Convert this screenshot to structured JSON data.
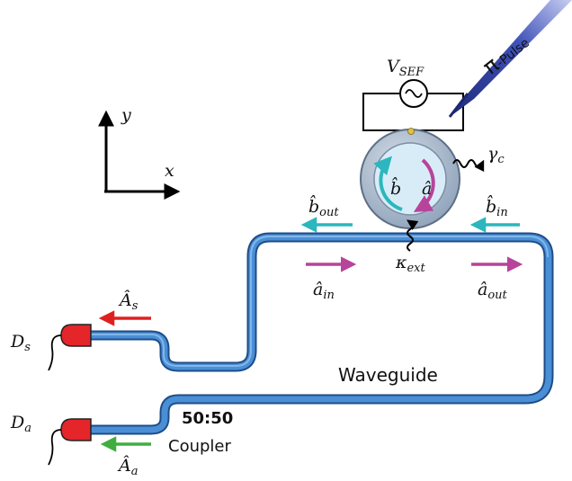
{
  "axes": {
    "y": "y",
    "x": "x"
  },
  "source": {
    "label_main": "V",
    "label_sub": "SEF",
    "symbol": "~"
  },
  "pulse": {
    "pi": "π",
    "label": "-Pulse"
  },
  "ring": {
    "mode_b": "b̂",
    "mode_a": "â",
    "loss_main": "γ",
    "loss_sub": "c"
  },
  "coupling": {
    "main": "κ",
    "sub": "ext"
  },
  "modes": {
    "b_out_main": "b̂",
    "b_out_sub": "out",
    "b_in_main": "b̂",
    "b_in_sub": "in",
    "a_in_main": "â",
    "a_in_sub": "in",
    "a_out_main": "â",
    "a_out_sub": "out",
    "A_s_main": "Â",
    "A_s_sub": "s",
    "A_a_main": "Â",
    "A_a_sub": "a"
  },
  "detectors": {
    "s_main": "D",
    "s_sub": "s",
    "a_main": "D",
    "a_sub": "a"
  },
  "labels": {
    "waveguide": "Waveguide",
    "ratio": "50:50",
    "coupler": "Coupler"
  },
  "colors": {
    "waveguide": "#3b78c4",
    "waveguide_edge": "#1e4c87",
    "ring_outer": "#a9b9cc",
    "ring_inner_fill": "#d8ecf8",
    "cyan_arrow": "#2bb7bd",
    "magenta_arrow": "#b8439a",
    "red_arrow": "#e02020",
    "green_arrow": "#3fae3f",
    "detector": "#e4252a",
    "pulse_beam": "#3a4aa8"
  }
}
